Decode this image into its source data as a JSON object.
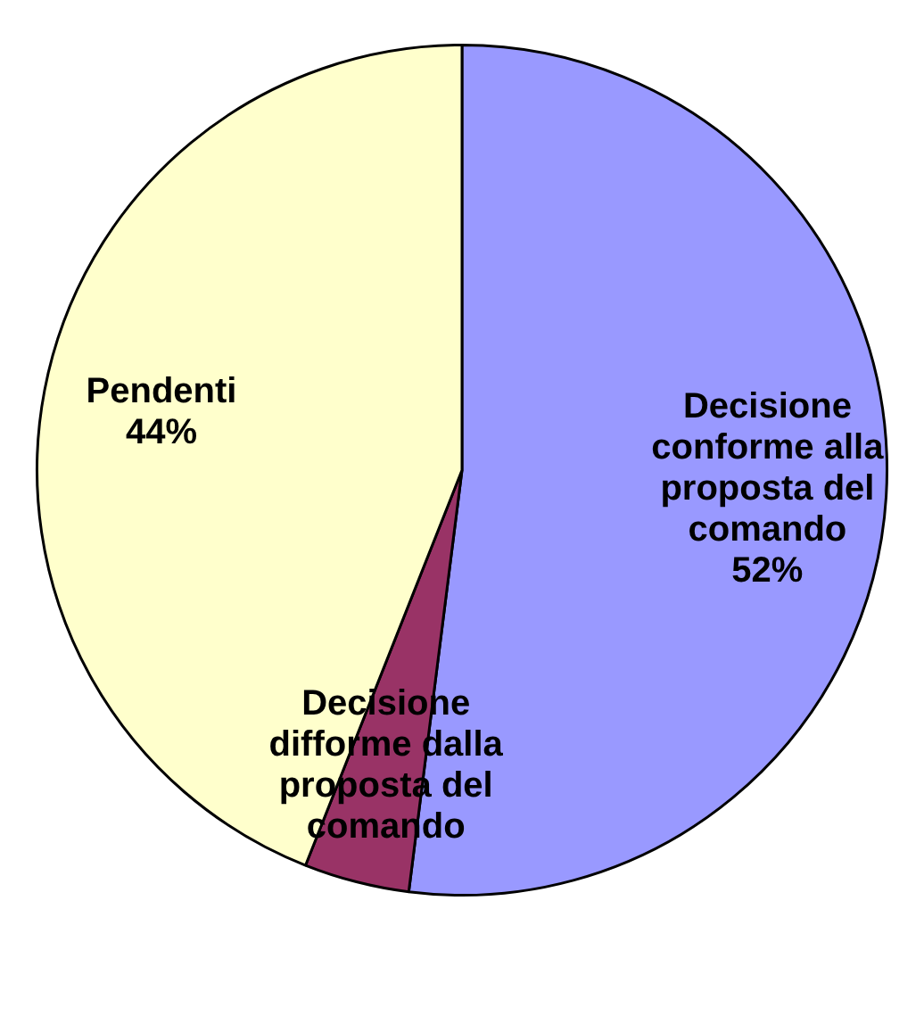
{
  "chart_data": {
    "type": "pie",
    "categories": [
      "Decisione conforme alla proposta del comando",
      "Decisione difforme dalla proposta del comando",
      "Pendenti"
    ],
    "values": [
      52,
      4,
      44
    ],
    "colors": [
      "#9999ff",
      "#993366",
      "#ffffcc"
    ],
    "value_labels": [
      "52%",
      null,
      "44%"
    ],
    "legend": false
  }
}
